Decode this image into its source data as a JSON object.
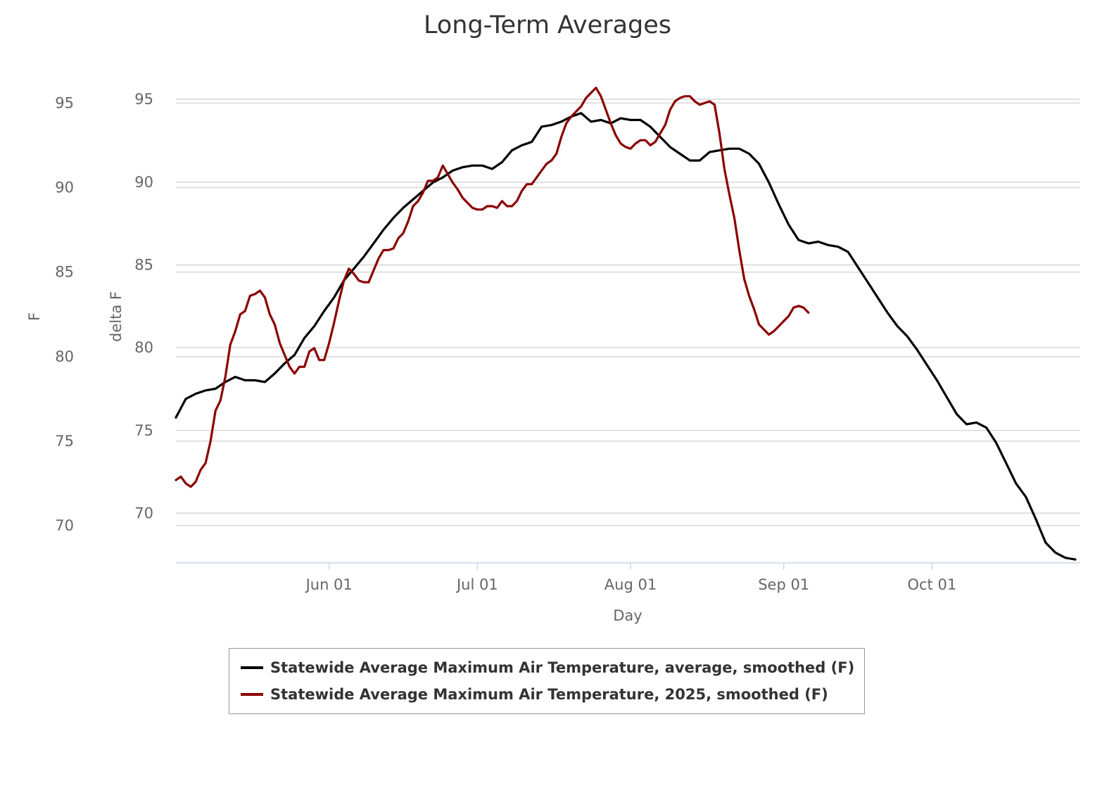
{
  "chart_data": {
    "type": "line",
    "title": "Long-Term Averages",
    "xlabel": "Day",
    "y_axes": [
      {
        "label": "F",
        "ticks": [
          70,
          75,
          80,
          85,
          90,
          95
        ],
        "range": [
          67.8,
          96.1
        ]
      },
      {
        "label": "delta F",
        "ticks": [
          70,
          75,
          80,
          85,
          90,
          95
        ],
        "range": [
          67,
          95.9
        ]
      }
    ],
    "x_ticks": [
      "Jun 01",
      "Jul 01",
      "Aug 01",
      "Sep 01",
      "Oct 01"
    ],
    "x_range": [
      "2025-05-01",
      "2025-10-31"
    ],
    "series": [
      {
        "name": "Statewide Average Maximum Air Temperature, average, smoothed (F)",
        "color": "#000000",
        "points": [
          [
            "2025-05-01",
            76.4
          ],
          [
            "2025-05-03",
            77.5
          ],
          [
            "2025-05-05",
            77.8
          ],
          [
            "2025-05-07",
            78.0
          ],
          [
            "2025-05-09",
            78.1
          ],
          [
            "2025-05-11",
            78.5
          ],
          [
            "2025-05-13",
            78.8
          ],
          [
            "2025-05-15",
            78.6
          ],
          [
            "2025-05-17",
            78.6
          ],
          [
            "2025-05-19",
            78.5
          ],
          [
            "2025-05-21",
            79.0
          ],
          [
            "2025-05-23",
            79.6
          ],
          [
            "2025-05-25",
            80.1
          ],
          [
            "2025-05-27",
            81.1
          ],
          [
            "2025-05-29",
            81.8
          ],
          [
            "2025-05-31",
            82.7
          ],
          [
            "2025-06-02",
            83.5
          ],
          [
            "2025-06-04",
            84.5
          ],
          [
            "2025-06-06",
            85.2
          ],
          [
            "2025-06-08",
            85.9
          ],
          [
            "2025-06-10",
            86.7
          ],
          [
            "2025-06-12",
            87.5
          ],
          [
            "2025-06-14",
            88.2
          ],
          [
            "2025-06-16",
            88.8
          ],
          [
            "2025-06-18",
            89.3
          ],
          [
            "2025-06-20",
            89.8
          ],
          [
            "2025-06-22",
            90.3
          ],
          [
            "2025-06-24",
            90.6
          ],
          [
            "2025-06-26",
            91.0
          ],
          [
            "2025-06-28",
            91.2
          ],
          [
            "2025-06-30",
            91.3
          ],
          [
            "2025-07-02",
            91.3
          ],
          [
            "2025-07-04",
            91.1
          ],
          [
            "2025-07-06",
            91.5
          ],
          [
            "2025-07-08",
            92.2
          ],
          [
            "2025-07-10",
            92.5
          ],
          [
            "2025-07-12",
            92.7
          ],
          [
            "2025-07-14",
            93.6
          ],
          [
            "2025-07-16",
            93.7
          ],
          [
            "2025-07-18",
            93.9
          ],
          [
            "2025-07-20",
            94.2
          ],
          [
            "2025-07-22",
            94.4
          ],
          [
            "2025-07-24",
            93.9
          ],
          [
            "2025-07-26",
            94.0
          ],
          [
            "2025-07-28",
            93.8
          ],
          [
            "2025-07-30",
            94.1
          ],
          [
            "2025-08-01",
            94.0
          ],
          [
            "2025-08-03",
            94.0
          ],
          [
            "2025-08-05",
            93.6
          ],
          [
            "2025-08-07",
            93.0
          ],
          [
            "2025-08-09",
            92.4
          ],
          [
            "2025-08-11",
            92.0
          ],
          [
            "2025-08-13",
            91.6
          ],
          [
            "2025-08-15",
            91.6
          ],
          [
            "2025-08-17",
            92.1
          ],
          [
            "2025-08-19",
            92.2
          ],
          [
            "2025-08-21",
            92.3
          ],
          [
            "2025-08-23",
            92.3
          ],
          [
            "2025-08-25",
            92.0
          ],
          [
            "2025-08-27",
            91.4
          ],
          [
            "2025-08-29",
            90.3
          ],
          [
            "2025-08-31",
            89.0
          ],
          [
            "2025-09-02",
            87.8
          ],
          [
            "2025-09-04",
            86.9
          ],
          [
            "2025-09-06",
            86.7
          ],
          [
            "2025-09-08",
            86.8
          ],
          [
            "2025-09-10",
            86.6
          ],
          [
            "2025-09-12",
            86.5
          ],
          [
            "2025-09-14",
            86.2
          ],
          [
            "2025-09-16",
            85.3
          ],
          [
            "2025-09-18",
            84.4
          ],
          [
            "2025-09-20",
            83.5
          ],
          [
            "2025-09-22",
            82.6
          ],
          [
            "2025-09-24",
            81.8
          ],
          [
            "2025-09-26",
            81.2
          ],
          [
            "2025-09-28",
            80.4
          ],
          [
            "2025-09-30",
            79.5
          ],
          [
            "2025-10-02",
            78.6
          ],
          [
            "2025-10-04",
            77.6
          ],
          [
            "2025-10-06",
            76.6
          ],
          [
            "2025-10-08",
            76.0
          ],
          [
            "2025-10-10",
            76.1
          ],
          [
            "2025-10-12",
            75.8
          ],
          [
            "2025-10-14",
            74.9
          ],
          [
            "2025-10-16",
            73.7
          ],
          [
            "2025-10-18",
            72.5
          ],
          [
            "2025-10-20",
            71.7
          ],
          [
            "2025-10-22",
            70.4
          ],
          [
            "2025-10-24",
            69.0
          ],
          [
            "2025-10-26",
            68.4
          ],
          [
            "2025-10-28",
            68.1
          ],
          [
            "2025-10-30",
            68.0
          ]
        ]
      },
      {
        "name": "Statewide Average Maximum Air Temperature, 2025, smoothed (F)",
        "color": "#8b0000",
        "points": [
          [
            "2025-05-01",
            72.7
          ],
          [
            "2025-05-02",
            72.9
          ],
          [
            "2025-05-03",
            72.5
          ],
          [
            "2025-05-04",
            72.3
          ],
          [
            "2025-05-05",
            72.6
          ],
          [
            "2025-05-06",
            73.3
          ],
          [
            "2025-05-07",
            73.7
          ],
          [
            "2025-05-08",
            75.0
          ],
          [
            "2025-05-09",
            76.8
          ],
          [
            "2025-05-10",
            77.4
          ],
          [
            "2025-05-11",
            78.8
          ],
          [
            "2025-05-12",
            80.7
          ],
          [
            "2025-05-13",
            81.5
          ],
          [
            "2025-05-14",
            82.5
          ],
          [
            "2025-05-15",
            82.7
          ],
          [
            "2025-05-16",
            83.6
          ],
          [
            "2025-05-17",
            83.7
          ],
          [
            "2025-05-18",
            83.9
          ],
          [
            "2025-05-19",
            83.5
          ],
          [
            "2025-05-20",
            82.5
          ],
          [
            "2025-05-21",
            81.9
          ],
          [
            "2025-05-22",
            80.8
          ],
          [
            "2025-05-23",
            80.1
          ],
          [
            "2025-05-24",
            79.4
          ],
          [
            "2025-05-25",
            79.0
          ],
          [
            "2025-05-26",
            79.4
          ],
          [
            "2025-05-27",
            79.4
          ],
          [
            "2025-05-28",
            80.3
          ],
          [
            "2025-05-29",
            80.5
          ],
          [
            "2025-05-30",
            79.8
          ],
          [
            "2025-05-31",
            79.8
          ],
          [
            "2025-06-01",
            80.8
          ],
          [
            "2025-06-02",
            82.0
          ],
          [
            "2025-06-03",
            83.3
          ],
          [
            "2025-06-04",
            84.5
          ],
          [
            "2025-06-05",
            85.2
          ],
          [
            "2025-06-06",
            84.9
          ],
          [
            "2025-06-07",
            84.5
          ],
          [
            "2025-06-08",
            84.4
          ],
          [
            "2025-06-09",
            84.4
          ],
          [
            "2025-06-10",
            85.1
          ],
          [
            "2025-06-11",
            85.8
          ],
          [
            "2025-06-12",
            86.3
          ],
          [
            "2025-06-13",
            86.3
          ],
          [
            "2025-06-14",
            86.4
          ],
          [
            "2025-06-15",
            87.0
          ],
          [
            "2025-06-16",
            87.3
          ],
          [
            "2025-06-17",
            88.0
          ],
          [
            "2025-06-18",
            88.9
          ],
          [
            "2025-06-19",
            89.2
          ],
          [
            "2025-06-20",
            89.7
          ],
          [
            "2025-06-21",
            90.4
          ],
          [
            "2025-06-22",
            90.4
          ],
          [
            "2025-06-23",
            90.6
          ],
          [
            "2025-06-24",
            91.3
          ],
          [
            "2025-06-25",
            90.8
          ],
          [
            "2025-06-26",
            90.3
          ],
          [
            "2025-06-27",
            89.9
          ],
          [
            "2025-06-28",
            89.4
          ],
          [
            "2025-06-29",
            89.1
          ],
          [
            "2025-06-30",
            88.8
          ],
          [
            "2025-07-01",
            88.7
          ],
          [
            "2025-07-02",
            88.7
          ],
          [
            "2025-07-03",
            88.9
          ],
          [
            "2025-07-04",
            88.9
          ],
          [
            "2025-07-05",
            88.8
          ],
          [
            "2025-07-06",
            89.2
          ],
          [
            "2025-07-07",
            88.9
          ],
          [
            "2025-07-08",
            88.9
          ],
          [
            "2025-07-09",
            89.2
          ],
          [
            "2025-07-10",
            89.8
          ],
          [
            "2025-07-11",
            90.2
          ],
          [
            "2025-07-12",
            90.2
          ],
          [
            "2025-07-13",
            90.6
          ],
          [
            "2025-07-14",
            91.0
          ],
          [
            "2025-07-15",
            91.4
          ],
          [
            "2025-07-16",
            91.6
          ],
          [
            "2025-07-17",
            92.0
          ],
          [
            "2025-07-18",
            93.0
          ],
          [
            "2025-07-19",
            93.8
          ],
          [
            "2025-07-20",
            94.2
          ],
          [
            "2025-07-21",
            94.5
          ],
          [
            "2025-07-22",
            94.8
          ],
          [
            "2025-07-23",
            95.3
          ],
          [
            "2025-07-24",
            95.6
          ],
          [
            "2025-07-25",
            95.9
          ],
          [
            "2025-07-26",
            95.4
          ],
          [
            "2025-07-27",
            94.6
          ],
          [
            "2025-07-28",
            93.8
          ],
          [
            "2025-07-29",
            93.1
          ],
          [
            "2025-07-30",
            92.6
          ],
          [
            "2025-07-31",
            92.4
          ],
          [
            "2025-08-01",
            92.3
          ],
          [
            "2025-08-02",
            92.6
          ],
          [
            "2025-08-03",
            92.8
          ],
          [
            "2025-08-04",
            92.8
          ],
          [
            "2025-08-05",
            92.5
          ],
          [
            "2025-08-06",
            92.7
          ],
          [
            "2025-08-07",
            93.2
          ],
          [
            "2025-08-08",
            93.7
          ],
          [
            "2025-08-09",
            94.6
          ],
          [
            "2025-08-10",
            95.1
          ],
          [
            "2025-08-11",
            95.3
          ],
          [
            "2025-08-12",
            95.4
          ],
          [
            "2025-08-13",
            95.4
          ],
          [
            "2025-08-14",
            95.1
          ],
          [
            "2025-08-15",
            94.9
          ],
          [
            "2025-08-16",
            95.0
          ],
          [
            "2025-08-17",
            95.1
          ],
          [
            "2025-08-18",
            94.9
          ],
          [
            "2025-08-19",
            93.2
          ],
          [
            "2025-08-20",
            91.1
          ],
          [
            "2025-08-21",
            89.6
          ],
          [
            "2025-08-22",
            88.2
          ],
          [
            "2025-08-23",
            86.3
          ],
          [
            "2025-08-24",
            84.6
          ],
          [
            "2025-08-25",
            83.6
          ],
          [
            "2025-08-26",
            82.8
          ],
          [
            "2025-08-27",
            81.9
          ],
          [
            "2025-08-28",
            81.6
          ],
          [
            "2025-08-29",
            81.3
          ],
          [
            "2025-08-30",
            81.5
          ],
          [
            "2025-08-31",
            81.8
          ],
          [
            "2025-09-01",
            82.1
          ],
          [
            "2025-09-02",
            82.4
          ],
          [
            "2025-09-03",
            82.9
          ],
          [
            "2025-09-04",
            83.0
          ],
          [
            "2025-09-05",
            82.9
          ],
          [
            "2025-09-06",
            82.6
          ]
        ]
      }
    ]
  }
}
